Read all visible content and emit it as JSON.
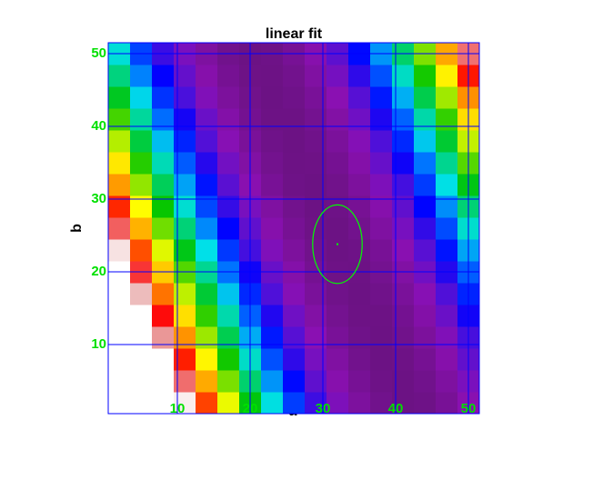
{
  "chart_data": {
    "type": "heatmap",
    "title": "linear fit",
    "xlabel": "a",
    "ylabel": "b",
    "x": [
      2,
      5,
      8,
      11,
      14,
      17,
      20,
      23,
      26,
      29,
      32,
      35,
      38,
      41,
      44,
      47,
      50
    ],
    "y": [
      2,
      5,
      8,
      11,
      14,
      17,
      20,
      23,
      26,
      29,
      32,
      35,
      38,
      41,
      44,
      47,
      50
    ],
    "z": [
      [
        828,
        707,
        596,
        494,
        402,
        319,
        246,
        182,
        128,
        84,
        48,
        23,
        7,
        0,
        3,
        16,
        38
      ],
      [
        774,
        658,
        551,
        453,
        365,
        286,
        217,
        158,
        108,
        67,
        36,
        15,
        3,
        0,
        7,
        24,
        50
      ],
      [
        723,
        610,
        507,
        413,
        329,
        255,
        190,
        135,
        89,
        52,
        26,
        8,
        0,
        2,
        13,
        34,
        65
      ],
      [
        672,
        564,
        465,
        376,
        296,
        226,
        165,
        114,
        72,
        40,
        17,
        4,
        0,
        6,
        21,
        46,
        81
      ],
      [
        624,
        520,
        425,
        340,
        264,
        198,
        141,
        94,
        57,
        29,
        10,
        1,
        1,
        11,
        31,
        60,
        99
      ],
      [
        578,
        477,
        387,
        306,
        234,
        172,
        120,
        77,
        43,
        19,
        5,
        0,
        5,
        19,
        42,
        76,
        118
      ],
      [
        533,
        437,
        350,
        274,
        206,
        148,
        100,
        61,
        32,
        12,
        2,
        1,
        10,
        28,
        56,
        93,
        140
      ],
      [
        490,
        398,
        316,
        243,
        180,
        126,
        82,
        47,
        22,
        6,
        0,
        3,
        16,
        39,
        71,
        112,
        163
      ],
      [
        449,
        361,
        283,
        214,
        155,
        106,
        66,
        35,
        14,
        2,
        0,
        8,
        25,
        52,
        88,
        133,
        188
      ],
      [
        410,
        326,
        252,
        187,
        132,
        87,
        51,
        25,
        8,
        0,
        3,
        14,
        35,
        66,
        106,
        156,
        215
      ],
      [
        372,
        293,
        223,
        162,
        112,
        70,
        38,
        16,
        3,
        0,
        6,
        22,
        48,
        82,
        127,
        181,
        244
      ],
      [
        336,
        261,
        195,
        139,
        92,
        55,
        28,
        9,
        1,
        2,
        12,
        32,
        62,
        100,
        149,
        207,
        275
      ],
      [
        303,
        231,
        170,
        118,
        75,
        42,
        18,
        4,
        0,
        5,
        20,
        44,
        77,
        120,
        173,
        235,
        307
      ],
      [
        270,
        203,
        146,
        98,
        60,
        31,
        11,
        1,
        1,
        10,
        29,
        57,
        95,
        142,
        199,
        265,
        341
      ],
      [
        240,
        177,
        124,
        80,
        46,
        21,
        6,
        0,
        4,
        17,
        40,
        72,
        114,
        166,
        227,
        297,
        377
      ],
      [
        212,
        153,
        104,
        64,
        34,
        13,
        2,
        1,
        8,
        26,
        53,
        89,
        135,
        191,
        256,
        331,
        415
      ],
      [
        185,
        130,
        85,
        50,
        24,
        7,
        0,
        3,
        15,
        36,
        68,
        108,
        158,
        218,
        287,
        366,
        454
      ]
    ],
    "colorscale": [
      [
        0,
        "#6c1284"
      ],
      [
        40,
        "#8a10b2"
      ],
      [
        80,
        "#4a10dc"
      ],
      [
        105,
        "#0000ff"
      ],
      [
        150,
        "#0078ff"
      ],
      [
        180,
        "#00e0e8"
      ],
      [
        250,
        "#00c400"
      ],
      [
        325,
        "#ffff00"
      ],
      [
        380,
        "#ff8a00"
      ],
      [
        422,
        "#ff0000"
      ],
      [
        470,
        "#e8a8a8"
      ]
    ],
    "zlim": [
      0,
      500
    ],
    "over_color": "#ffffff",
    "xlim": [
      0.5,
      51.5
    ],
    "ylim": [
      0.5,
      51.5
    ],
    "xticks": [
      10,
      20,
      30,
      40,
      50
    ],
    "yticks": [
      10,
      20,
      30,
      40,
      50
    ],
    "grid": true,
    "grid_color": "#0000ff",
    "tick_color": "#00e000",
    "best_fit": {
      "a": 32,
      "b": 23.8,
      "sigma_a": 3.4,
      "sigma_b": 5.4,
      "color": "#00ff00"
    }
  }
}
